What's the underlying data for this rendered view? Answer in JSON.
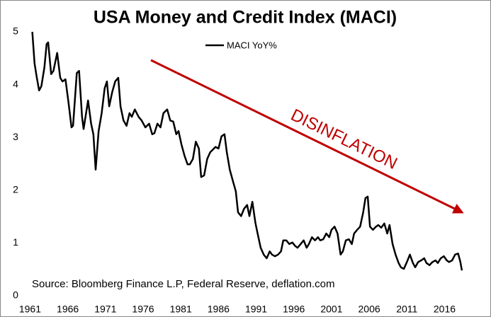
{
  "chart_data": {
    "type": "line",
    "title": "USA Money and Credit Index (MACI)",
    "series": [
      {
        "name": "MACI YoY%",
        "color": "#000000",
        "x": [
          1961.3,
          1961.6,
          1961.9,
          1962.2,
          1962.5,
          1962.9,
          1963.2,
          1963.4,
          1963.8,
          1964.1,
          1964.6,
          1965.0,
          1965.3,
          1965.7,
          1966.1,
          1966.5,
          1966.7,
          1967.2,
          1967.5,
          1967.9,
          1968.1,
          1968.7,
          1969.1,
          1969.4,
          1969.7,
          1970.1,
          1970.5,
          1970.9,
          1971.2,
          1971.5,
          1971.9,
          1972.3,
          1972.7,
          1973.0,
          1973.4,
          1973.8,
          1974.2,
          1974.5,
          1974.9,
          1975.4,
          1975.8,
          1976.3,
          1976.8,
          1977.2,
          1977.5,
          1977.9,
          1978.3,
          1978.7,
          1979.2,
          1979.6,
          1980.0,
          1980.4,
          1980.7,
          1981.1,
          1981.5,
          1981.9,
          1982.2,
          1982.6,
          1983.0,
          1983.4,
          1983.7,
          1984.1,
          1984.5,
          1984.9,
          1985.2,
          1985.6,
          1986.0,
          1986.4,
          1986.8,
          1987.1,
          1987.5,
          1987.9,
          1988.3,
          1988.6,
          1989.0,
          1989.4,
          1989.8,
          1990.1,
          1990.5,
          1990.9,
          1991.3,
          1991.6,
          1992.0,
          1992.4,
          1992.8,
          1993.1,
          1993.5,
          1993.9,
          1994.3,
          1994.6,
          1995.0,
          1995.4,
          1995.8,
          1996.2,
          1996.5,
          1996.9,
          1997.3,
          1997.7,
          1998.0,
          1998.4,
          1998.8,
          1999.2,
          1999.5,
          1999.9,
          2000.3,
          2000.7,
          2001.0,
          2001.4,
          2001.8,
          2002.2,
          2002.5,
          2002.9,
          2003.3,
          2003.7,
          2004.0,
          2004.4,
          2004.8,
          2005.2,
          2005.5,
          2005.8,
          2006.1,
          2006.5,
          2006.9,
          2007.2,
          2007.6,
          2008.0,
          2008.4,
          2008.7,
          2009.1,
          2009.5,
          2009.9,
          2010.2,
          2010.6,
          2011.0,
          2011.4,
          2011.8,
          2012.1,
          2012.5,
          2012.9,
          2013.3,
          2013.6,
          2014.0,
          2014.4,
          2014.8,
          2015.1,
          2015.5,
          2015.9,
          2016.3,
          2016.6,
          2017.0,
          2017.4,
          2017.8,
          2018.1,
          2018.3
        ],
        "values": [
          5.0,
          4.4,
          4.13,
          3.89,
          3.97,
          4.33,
          4.77,
          4.8,
          4.2,
          4.26,
          4.6,
          4.13,
          4.06,
          4.1,
          3.66,
          3.19,
          3.22,
          4.22,
          4.26,
          3.39,
          3.16,
          3.7,
          3.26,
          3.06,
          2.39,
          3.12,
          3.46,
          3.93,
          4.06,
          3.59,
          3.86,
          4.06,
          4.13,
          3.59,
          3.32,
          3.22,
          3.46,
          3.39,
          3.53,
          3.39,
          3.32,
          3.19,
          3.26,
          3.06,
          3.08,
          3.26,
          3.19,
          3.46,
          3.53,
          3.32,
          3.3,
          3.06,
          3.12,
          2.86,
          2.65,
          2.49,
          2.49,
          2.59,
          2.92,
          2.79,
          2.25,
          2.28,
          2.59,
          2.72,
          2.76,
          2.82,
          2.79,
          3.02,
          3.06,
          2.72,
          2.39,
          2.18,
          1.98,
          1.58,
          1.51,
          1.65,
          1.72,
          1.51,
          1.78,
          1.38,
          1.11,
          0.91,
          0.78,
          0.71,
          0.84,
          0.78,
          0.75,
          0.78,
          0.84,
          1.05,
          1.05,
          0.98,
          1.01,
          0.94,
          0.91,
          0.98,
          1.05,
          0.91,
          0.98,
          1.11,
          1.05,
          1.11,
          1.05,
          1.07,
          1.18,
          1.11,
          1.25,
          1.31,
          1.18,
          0.78,
          0.84,
          1.05,
          1.07,
          0.98,
          1.18,
          1.25,
          1.31,
          1.58,
          1.85,
          1.88,
          1.31,
          1.25,
          1.31,
          1.34,
          1.29,
          1.37,
          1.18,
          1.34,
          0.98,
          0.78,
          0.62,
          0.54,
          0.51,
          0.64,
          0.78,
          0.62,
          0.54,
          0.64,
          0.67,
          0.71,
          0.62,
          0.58,
          0.64,
          0.67,
          0.62,
          0.71,
          0.75,
          0.67,
          0.64,
          0.67,
          0.78,
          0.8,
          0.64,
          0.48
        ]
      }
    ],
    "xlim": [
      1960.3,
      2020.0
    ],
    "xticks": [
      1961,
      1966,
      1971,
      1976,
      1981,
      1986,
      1991,
      1996,
      2001,
      2006,
      2011,
      2016
    ],
    "ylim": [
      0,
      5
    ],
    "yticks": [
      0,
      1,
      2,
      3,
      4,
      5
    ],
    "grid": false,
    "legend": "top",
    "annotations": [
      "DISINFLATION"
    ],
    "source": "Source: Bloomberg Finance L.P, Federal Reserve, deflation.com"
  }
}
